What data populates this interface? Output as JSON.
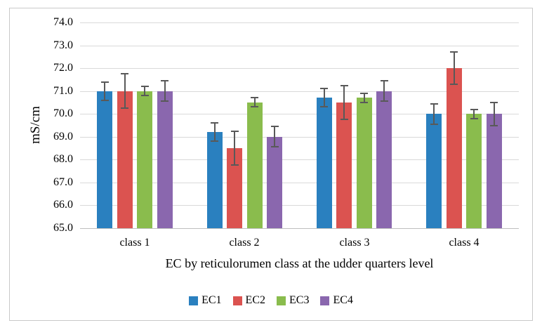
{
  "figure": {
    "background": "#FFFFFF",
    "border_color": "#C9C9C9"
  },
  "chart_data": {
    "type": "bar",
    "title": "",
    "xlabel": "EC by reticulorumen class at the udder quarters level",
    "ylabel": "mS/cm",
    "ylim": [
      65.0,
      74.0
    ],
    "ytick_step": 1.0,
    "ytick_labels": [
      "74.0",
      "73.0",
      "72.0",
      "71.0",
      "70.0",
      "69.0",
      "68.0",
      "67.0",
      "66.0",
      "65.0"
    ],
    "grid": "horizontal",
    "legend_position": "bottom",
    "categories": [
      "class 1",
      "class 2",
      "class 3",
      "class 4"
    ],
    "series": [
      {
        "name": "EC1",
        "color": "#2A80BF",
        "values": [
          71.0,
          69.2,
          70.7,
          70.0
        ],
        "errors": [
          0.4,
          0.4,
          0.4,
          0.45
        ]
      },
      {
        "name": "EC2",
        "color": "#DB5350",
        "values": [
          71.0,
          68.5,
          70.5,
          72.0
        ],
        "errors": [
          0.75,
          0.75,
          0.75,
          0.7
        ]
      },
      {
        "name": "EC3",
        "color": "#8ABC4D",
        "values": [
          71.0,
          70.5,
          70.7,
          70.0
        ],
        "errors": [
          0.2,
          0.2,
          0.2,
          0.2
        ]
      },
      {
        "name": "EC4",
        "color": "#8A67AE",
        "values": [
          71.0,
          69.0,
          71.0,
          70.0
        ],
        "errors": [
          0.45,
          0.45,
          0.45,
          0.5
        ]
      }
    ],
    "error_bar_color": "#595959",
    "gridline_color": "#D9D9D9",
    "axis_line_color": "#BFBFBF",
    "text_color": "#000000"
  }
}
